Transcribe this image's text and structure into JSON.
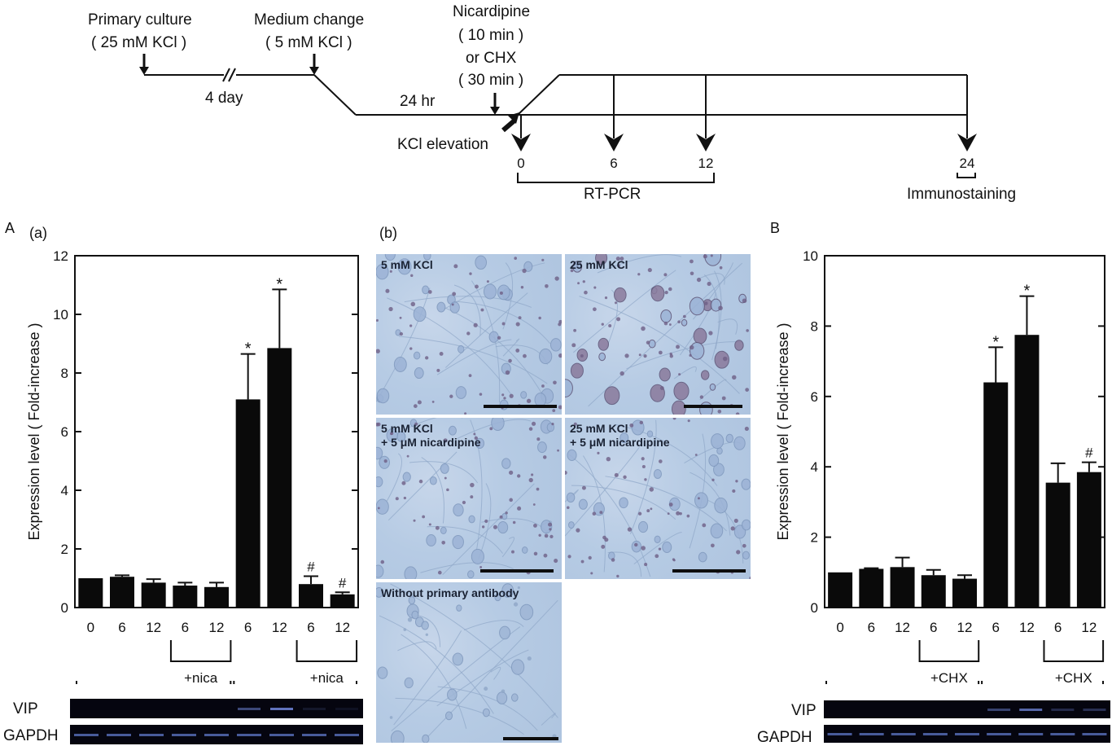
{
  "timeline": {
    "primary_culture_title": "Primary culture",
    "primary_culture_cond": "( 25 mM KCl )",
    "medium_change_title": "Medium change",
    "medium_change_cond": "( 5 mM KCl )",
    "duration_1": "4 day",
    "duration_2": "24 hr",
    "treatment_l1": "Nicardipine",
    "treatment_l2": "( 10 min )",
    "treatment_l3": "or CHX",
    "treatment_l4": "( 30 min )",
    "kcl_elevation": "KCl elevation",
    "time_0": "0",
    "time_6": "6",
    "time_12": "12",
    "time_24": "24",
    "rtpcr": "RT-PCR",
    "immunostaining": "Immunostaining"
  },
  "panel_labels": {
    "A": "A",
    "a": "(a)",
    "b": "(b)",
    "B": "B"
  },
  "micrographs": [
    {
      "label": "5 mM KCl"
    },
    {
      "label": "25 mM KCl"
    },
    {
      "label": "5 mM KCl\n+ 5 μM nicardipine"
    },
    {
      "label": "25 mM KCl\n+ 5 μM nicardipine"
    },
    {
      "label": "Without primary antibody"
    }
  ],
  "gel_labels": {
    "vip": "VIP",
    "gapdh": "GAPDH"
  },
  "chart_data": [
    {
      "type": "bar",
      "panel": "A (a)",
      "ylabel": "Expression level ( Fold-increase )",
      "ylim": [
        0,
        12
      ],
      "yticks": [
        0,
        2,
        4,
        6,
        8,
        10,
        12
      ],
      "categories": [
        "0",
        "6",
        "12",
        "6",
        "12",
        "6",
        "12",
        "6",
        "12"
      ],
      "values": [
        1.0,
        1.05,
        0.85,
        0.75,
        0.7,
        7.1,
        8.85,
        0.8,
        0.45
      ],
      "errors": [
        0.0,
        0.05,
        0.12,
        0.1,
        0.15,
        1.55,
        2.0,
        0.27,
        0.07
      ],
      "markers": [
        "",
        "",
        "",
        "",
        "",
        "*",
        "*",
        "#",
        "#"
      ],
      "bracket_labels": [
        "+nica",
        "+nica"
      ],
      "group_labels": [
        "5 mM KCl",
        "25 mM KCl"
      ]
    },
    {
      "type": "bar",
      "panel": "B",
      "ylabel": "Expression level ( Fold-increase )",
      "ylim": [
        0,
        10
      ],
      "yticks": [
        0,
        2,
        4,
        6,
        8,
        10
      ],
      "categories": [
        "0",
        "6",
        "12",
        "6",
        "12",
        "6",
        "12",
        "6",
        "12"
      ],
      "values": [
        1.0,
        1.1,
        1.15,
        0.92,
        0.82,
        6.4,
        7.75,
        3.55,
        3.85
      ],
      "errors": [
        0.0,
        0.02,
        0.27,
        0.15,
        0.1,
        1.0,
        1.1,
        0.55,
        0.28
      ],
      "markers": [
        "",
        "",
        "",
        "",
        "",
        "*",
        "*",
        "",
        "#"
      ],
      "bracket_labels": [
        "+CHX",
        "+CHX"
      ],
      "group_labels": [
        "5 mM KCl",
        "25 mM KCl"
      ]
    }
  ]
}
